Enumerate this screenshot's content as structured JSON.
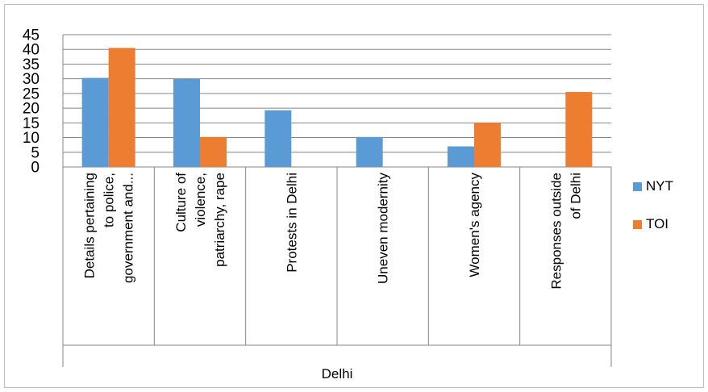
{
  "chart_data": {
    "type": "bar",
    "title": "",
    "xlabel": "Delhi",
    "ylabel": "",
    "ylim": [
      0,
      45
    ],
    "yticks": [
      0,
      5,
      10,
      15,
      20,
      25,
      30,
      35,
      40,
      45
    ],
    "grid": true,
    "legend_position": "right",
    "categories": [
      [
        "Details pertaining",
        "to police,",
        "government and..."
      ],
      [
        "Culture of",
        "violence,",
        "patriarchy, rape"
      ],
      [
        "Protests in Delhi"
      ],
      [
        "Uneven modernity"
      ],
      [
        "Women's agency"
      ],
      [
        "Responses outside",
        "of Delhi"
      ]
    ],
    "series": [
      {
        "name": "NYT",
        "color": "#5b9bd5",
        "values": [
          30.3,
          30,
          19.3,
          10.2,
          7,
          0
        ]
      },
      {
        "name": "TOI",
        "color": "#ed7d31",
        "values": [
          40.5,
          10.2,
          0,
          0,
          15,
          25.5
        ]
      }
    ]
  }
}
